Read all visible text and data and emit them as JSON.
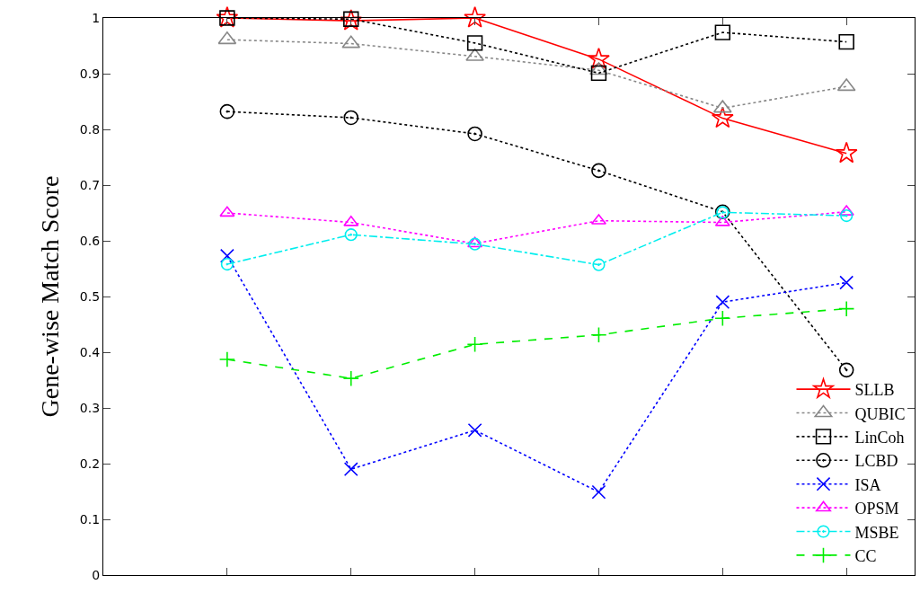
{
  "chart_data": {
    "type": "line",
    "ylabel": "Gene-wise Match Score",
    "categories": [
      null,
      null,
      null,
      null,
      null,
      null
    ],
    "ylim": [
      0,
      1
    ],
    "yticks": [
      0,
      0.1,
      0.2,
      0.3,
      0.4,
      0.5,
      0.6,
      0.7,
      0.8,
      0.9,
      1
    ],
    "legend": "bottom right",
    "series": [
      {
        "name": "SLLB",
        "color": "#ff0000",
        "marker": "star",
        "line_style": "solid",
        "values": [
          1.0,
          0.995,
          1.0,
          0.926,
          0.82,
          0.757
        ]
      },
      {
        "name": "QUBIC",
        "color": "#888888",
        "marker": "triangle",
        "line_style": "dotted",
        "values": [
          0.961,
          0.954,
          0.931,
          0.906,
          0.838,
          0.877
        ]
      },
      {
        "name": "LinCoh",
        "color": "#000000",
        "marker": "square",
        "line_style": "dotted",
        "values": [
          1.0,
          0.998,
          0.955,
          0.901,
          0.974,
          0.957
        ]
      },
      {
        "name": "LCBD",
        "color": "#000000",
        "marker": "circle",
        "line_style": "dotted",
        "values": [
          0.832,
          0.821,
          0.792,
          0.726,
          0.652,
          0.368
        ]
      },
      {
        "name": "ISA",
        "color": "#0000ff",
        "marker": "cross",
        "line_style": "dotted",
        "values": [
          0.573,
          0.19,
          0.26,
          0.149,
          0.49,
          0.525
        ]
      },
      {
        "name": "OPSM",
        "color": "#ff00ff",
        "marker": "triangle",
        "line_style": "dotted",
        "values": [
          0.65,
          0.633,
          0.595,
          0.636,
          0.633,
          0.652
        ]
      },
      {
        "name": "MSBE",
        "color": "#00eeee",
        "marker": "circle",
        "line_style": "dashdot",
        "values": [
          0.558,
          0.611,
          0.594,
          0.557,
          0.651,
          0.645
        ]
      },
      {
        "name": "CC",
        "color": "#00ee00",
        "marker": "plus",
        "line_style": "dashed",
        "values": [
          0.387,
          0.353,
          0.414,
          0.431,
          0.461,
          0.478
        ]
      }
    ]
  }
}
